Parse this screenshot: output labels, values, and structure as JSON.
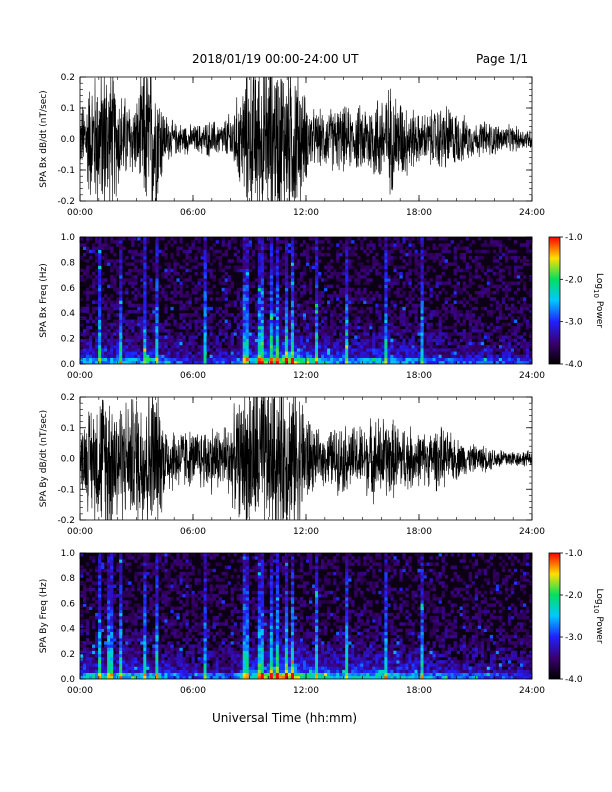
{
  "header": {
    "title": "2018/01/19  00:00-24:00 UT",
    "page": "Page 1/1"
  },
  "x_axis": {
    "title": "Universal Time (hh:mm)",
    "ticks": [
      "00:00",
      "06:00",
      "12:00",
      "18:00",
      "24:00"
    ],
    "range_hours": [
      0,
      24
    ]
  },
  "colorbar": {
    "label": "Log10 Power",
    "label_main": "Log",
    "label_sub": "10",
    "label_tail": " Power",
    "ticks": [
      "-1.0",
      "-2.0",
      "-3.0",
      "-4.0"
    ],
    "range": [
      -4.0,
      -1.0
    ],
    "colors": [
      "#000000",
      "#3a0070",
      "#2020ff",
      "#00c8ff",
      "#00e060",
      "#ffe000",
      "#ff0000"
    ]
  },
  "chart_data": [
    {
      "type": "line",
      "panel": "SPA Bx",
      "ylabel": "SPA Bx dB/dt (nT/sec)",
      "ylim": [
        -0.2,
        0.2
      ],
      "yticks": [
        "0.2",
        "0.1",
        "0.0",
        "-0.1",
        "-0.2"
      ],
      "color": "#000000",
      "amplitude_envelope": {
        "hours": [
          0,
          0.5,
          1,
          1.5,
          2,
          2.5,
          3,
          3.5,
          4,
          4.5,
          5,
          5.5,
          6,
          6.5,
          7,
          7.5,
          8,
          8.5,
          9,
          9.5,
          10,
          10.5,
          11,
          11.5,
          12,
          12.5,
          13,
          13.5,
          14,
          14.5,
          15,
          15.5,
          16,
          16.5,
          17,
          17.5,
          18,
          18.5,
          19,
          19.5,
          20,
          20.5,
          21,
          21.5,
          22,
          22.5,
          23,
          23.5,
          24
        ],
        "amplitude": [
          0.1,
          0.22,
          0.28,
          0.3,
          0.2,
          0.15,
          0.14,
          0.3,
          0.3,
          0.1,
          0.06,
          0.06,
          0.05,
          0.06,
          0.07,
          0.06,
          0.1,
          0.18,
          0.3,
          0.3,
          0.3,
          0.3,
          0.3,
          0.3,
          0.15,
          0.1,
          0.11,
          0.12,
          0.12,
          0.11,
          0.13,
          0.15,
          0.18,
          0.2,
          0.16,
          0.13,
          0.09,
          0.1,
          0.12,
          0.13,
          0.1,
          0.08,
          0.06,
          0.07,
          0.06,
          0.05,
          0.05,
          0.04,
          0.04
        ]
      }
    },
    {
      "type": "heatmap",
      "panel": "SPA Bx spectrogram",
      "ylabel": "SPA Bx Freq (Hz)",
      "ylim": [
        0.0,
        1.0
      ],
      "yticks": [
        "1.0",
        "0.8",
        "0.6",
        "0.4",
        "0.2",
        "0.0"
      ],
      "zlim": [
        -4.0,
        -1.0
      ],
      "vertical_streak_hours": [
        1.0,
        2.2,
        3.4,
        4.1,
        6.6,
        8.8,
        9.6,
        10.1,
        10.5,
        11.0,
        11.3,
        12.6,
        14.2,
        16.2,
        18.1
      ],
      "activity_envelope_hours": [
        0,
        2,
        4,
        6,
        8,
        10,
        11,
        12,
        14,
        16,
        18,
        20,
        22,
        24
      ],
      "activity_envelope_level": [
        0.5,
        0.55,
        0.5,
        0.3,
        0.35,
        0.8,
        0.95,
        0.7,
        0.5,
        0.55,
        0.45,
        0.4,
        0.35,
        0.3
      ]
    },
    {
      "type": "line",
      "panel": "SPA By",
      "ylabel": "SPA By dB/dt (nT/sec)",
      "ylim": [
        -0.2,
        0.2
      ],
      "yticks": [
        "0.2",
        "0.1",
        "0.0",
        "-0.1",
        "-0.2"
      ],
      "color": "#000000",
      "amplitude_envelope": {
        "hours": [
          0,
          0.5,
          1,
          1.5,
          2,
          2.5,
          3,
          3.5,
          4,
          4.5,
          5,
          5.5,
          6,
          6.5,
          7,
          7.5,
          8,
          8.5,
          9,
          9.5,
          10,
          10.5,
          11,
          11.5,
          12,
          12.5,
          13,
          13.5,
          14,
          14.5,
          15,
          15.5,
          16,
          16.5,
          17,
          17.5,
          18,
          18.5,
          19,
          19.5,
          20,
          20.5,
          21,
          21.5,
          22,
          22.5,
          23,
          23.5,
          24
        ],
        "amplitude": [
          0.1,
          0.2,
          0.25,
          0.3,
          0.25,
          0.22,
          0.25,
          0.3,
          0.3,
          0.15,
          0.12,
          0.12,
          0.1,
          0.12,
          0.13,
          0.12,
          0.16,
          0.22,
          0.3,
          0.3,
          0.3,
          0.3,
          0.3,
          0.3,
          0.2,
          0.1,
          0.1,
          0.12,
          0.13,
          0.12,
          0.13,
          0.15,
          0.16,
          0.15,
          0.13,
          0.12,
          0.1,
          0.1,
          0.12,
          0.1,
          0.08,
          0.06,
          0.05,
          0.05,
          0.04,
          0.04,
          0.03,
          0.03,
          0.03
        ]
      }
    },
    {
      "type": "heatmap",
      "panel": "SPA By spectrogram",
      "ylabel": "SPA By Freq (Hz)",
      "ylim": [
        0.0,
        1.0
      ],
      "yticks": [
        "1.0",
        "0.8",
        "0.6",
        "0.4",
        "0.2",
        "0.0"
      ],
      "zlim": [
        -4.0,
        -1.0
      ],
      "vertical_streak_hours": [
        1.0,
        1.6,
        2.2,
        3.4,
        4.1,
        6.6,
        8.8,
        9.6,
        10.1,
        10.5,
        11.0,
        11.3,
        12.6,
        14.2,
        16.2,
        18.1
      ],
      "activity_envelope_hours": [
        0,
        2,
        4,
        6,
        8,
        10,
        11,
        12,
        14,
        16,
        18,
        20,
        22,
        24
      ],
      "activity_envelope_level": [
        0.55,
        0.6,
        0.55,
        0.35,
        0.4,
        0.85,
        1.0,
        0.75,
        0.55,
        0.6,
        0.5,
        0.4,
        0.35,
        0.3
      ]
    }
  ]
}
